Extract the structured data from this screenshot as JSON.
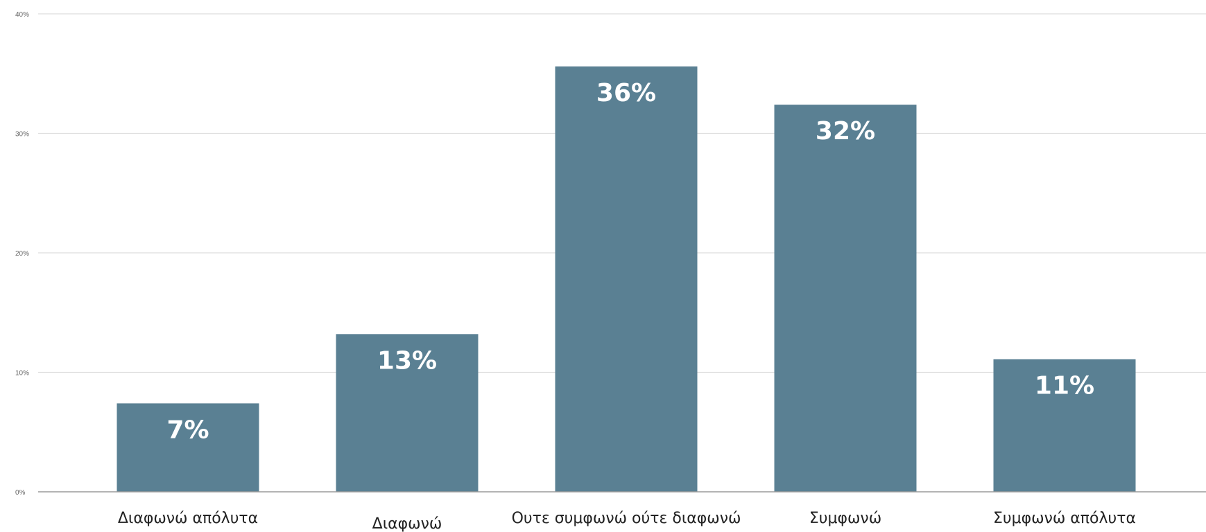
{
  "chart_data": {
    "type": "bar",
    "categories": [
      "Διαφωνώ απόλυτα",
      "Διαφωνώ",
      "Ουτε συμφωνώ ούτε διαφωνώ",
      "Συμφωνώ",
      "Συμφωνώ απόλυτα"
    ],
    "values": [
      7.4,
      13.2,
      35.6,
      32.4,
      11.1
    ],
    "data_labels": [
      "7%",
      "13%",
      "36%",
      "32%",
      "11%"
    ],
    "title": "",
    "xlabel": "",
    "ylabel": "",
    "ylim": [
      0,
      40
    ],
    "y_ticks": [
      0,
      10,
      20,
      30,
      40
    ],
    "y_tick_labels": [
      "0%",
      "10%",
      "20%",
      "30%",
      "40%"
    ],
    "grid": true,
    "legend": "none",
    "colors": {
      "bar": "#5a8093",
      "grid": "#dddddd",
      "axis": "#9a9a9a",
      "label": "#ffffff"
    }
  }
}
